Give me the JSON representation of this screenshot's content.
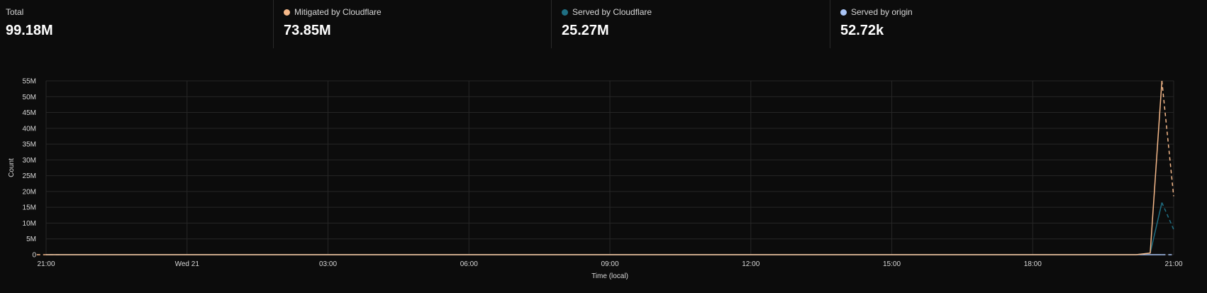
{
  "stats": [
    {
      "label": "Total",
      "value": "99.18M",
      "color": ""
    },
    {
      "label": "Mitigated by Cloudflare",
      "value": "73.85M",
      "color": "#f6b98a"
    },
    {
      "label": "Served by Cloudflare",
      "value": "25.27M",
      "color": "#1f6f83"
    },
    {
      "label": "Served by origin",
      "value": "52.72k",
      "color": "#a9c4f5"
    }
  ],
  "chart_data": {
    "type": "line",
    "xlabel": "Time (local)",
    "ylabel": "Count",
    "x_ticks": [
      "21:00",
      "Wed 21",
      "03:00",
      "06:00",
      "09:00",
      "12:00",
      "15:00",
      "18:00",
      "21:00"
    ],
    "x_range_hours": [
      0,
      24
    ],
    "y_ticks": [
      "0",
      "5M",
      "10M",
      "15M",
      "20M",
      "25M",
      "30M",
      "35M",
      "40M",
      "45M",
      "50M",
      "55M"
    ],
    "ylim": [
      0,
      55000000
    ],
    "grid": true,
    "series": [
      {
        "name": "Mitigated by Cloudflare",
        "color": "#f6b98a",
        "points": [
          [
            0,
            0
          ],
          [
            23.2,
            0
          ],
          [
            23.5,
            500000
          ],
          [
            23.75,
            55000000
          ]
        ],
        "projected": [
          [
            23.75,
            55000000
          ],
          [
            24,
            18500000
          ]
        ]
      },
      {
        "name": "Served by Cloudflare",
        "color": "#1f6f83",
        "points": [
          [
            0,
            0
          ],
          [
            23.2,
            0
          ],
          [
            23.5,
            500000
          ],
          [
            23.75,
            16500000
          ]
        ],
        "projected": [
          [
            23.75,
            16500000
          ],
          [
            24,
            8000000
          ]
        ]
      },
      {
        "name": "Served by origin",
        "color": "#a9c4f5",
        "points": [
          [
            0,
            0
          ],
          [
            23.75,
            0
          ]
        ],
        "projected": [
          [
            23.75,
            0
          ],
          [
            24,
            0
          ]
        ]
      }
    ],
    "lead_in_dashed": [
      [
        -0.2,
        0
      ],
      [
        0.3,
        0
      ]
    ]
  }
}
